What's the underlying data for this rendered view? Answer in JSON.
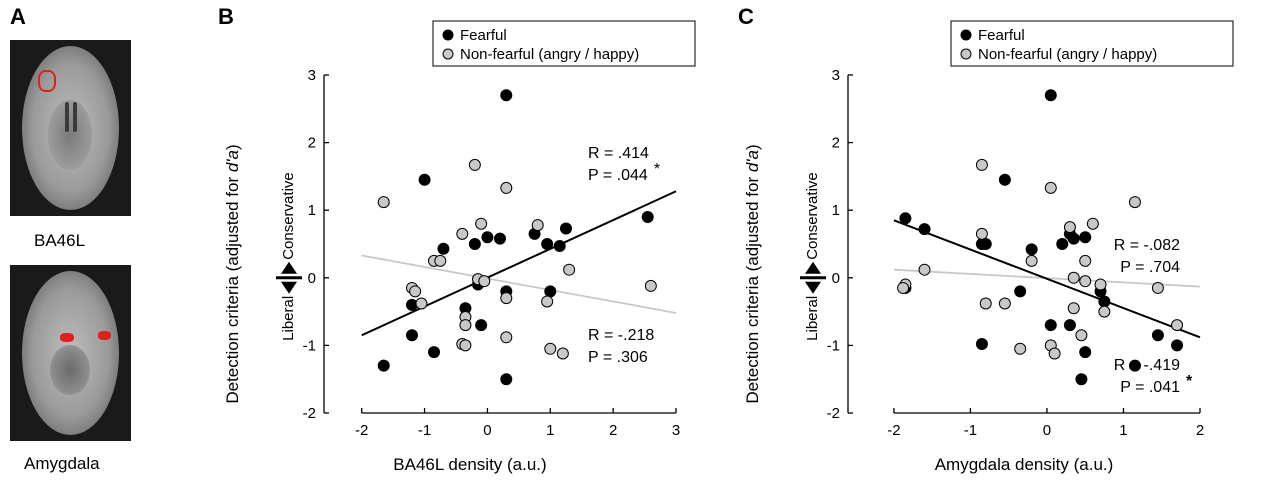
{
  "panels": {
    "a": {
      "letter": "A",
      "images": [
        {
          "label": "BA46L"
        },
        {
          "label": "Amygdala"
        }
      ]
    },
    "b": {
      "letter": "B"
    },
    "c": {
      "letter": "C"
    }
  },
  "colors": {
    "fearful": "#000000",
    "non_fearful": "#c8c8c8",
    "nonfearful_line": "#c8c8c8",
    "roi": "#e0201c"
  },
  "chart_data": [
    {
      "type": "scatter",
      "panel": "B",
      "xlabel": "BA46L density (a.u.)",
      "ylabel_main": "Detection criteria (adjusted for ",
      "ylabel_italic": "d'a",
      "ylabel_end": ")",
      "side_labels": {
        "up": "Conservative",
        "down": "Liberal"
      },
      "xlim": [
        -2.6,
        3
      ],
      "ylim": [
        -2,
        3
      ],
      "xticks": [
        "-2",
        "-1",
        "0",
        "1",
        "2",
        "3"
      ],
      "yticks": [
        "-2",
        "-1",
        "0",
        "1",
        "2",
        "3"
      ],
      "xtick_values": [
        -2,
        -1,
        0,
        1,
        2,
        3
      ],
      "ytick_values": [
        -2,
        -1,
        0,
        1,
        2,
        3
      ],
      "legend": {
        "position": "top-center",
        "entries": [
          "Fearful",
          "Non-fearful (angry / happy)"
        ]
      },
      "series": [
        {
          "name": "Fearful",
          "color": "#000000",
          "points": [
            [
              0.3,
              2.7
            ],
            [
              -1.0,
              1.45
            ],
            [
              -0.7,
              0.43
            ],
            [
              -0.2,
              0.5
            ],
            [
              0.0,
              0.6
            ],
            [
              0.2,
              0.58
            ],
            [
              0.75,
              0.65
            ],
            [
              0.95,
              0.5
            ],
            [
              1.15,
              0.47
            ],
            [
              1.25,
              0.73
            ],
            [
              2.55,
              0.9
            ],
            [
              -1.2,
              -0.4
            ],
            [
              -0.35,
              -0.45
            ],
            [
              -0.15,
              -0.1
            ],
            [
              0.3,
              -0.2
            ],
            [
              -1.2,
              -0.85
            ],
            [
              -0.85,
              -1.1
            ],
            [
              -0.1,
              -0.7
            ],
            [
              -1.65,
              -1.3
            ],
            [
              0.3,
              -1.5
            ],
            [
              1.0,
              -0.2
            ]
          ]
        },
        {
          "name": "Non-fearful (angry / happy)",
          "color": "#c8c8c8",
          "points": [
            [
              -1.65,
              1.12
            ],
            [
              -0.2,
              1.67
            ],
            [
              0.3,
              1.33
            ],
            [
              -0.4,
              0.65
            ],
            [
              -0.1,
              0.8
            ],
            [
              0.8,
              0.78
            ],
            [
              -0.85,
              0.25
            ],
            [
              -0.75,
              0.25
            ],
            [
              -1.2,
              -0.15
            ],
            [
              -1.15,
              -0.2
            ],
            [
              -0.15,
              -0.02
            ],
            [
              -0.05,
              -0.05
            ],
            [
              1.3,
              0.12
            ],
            [
              -1.05,
              -0.38
            ],
            [
              -0.35,
              -0.58
            ],
            [
              -0.35,
              -0.7
            ],
            [
              0.3,
              -0.3
            ],
            [
              0.95,
              -0.35
            ],
            [
              2.6,
              -0.12
            ],
            [
              0.3,
              -0.88
            ],
            [
              -0.4,
              -0.98
            ],
            [
              -0.35,
              -1.0
            ],
            [
              1.0,
              -1.05
            ],
            [
              1.2,
              -1.12
            ]
          ]
        }
      ],
      "fits": [
        {
          "series": "Fearful",
          "from": [
            -2,
            -0.85
          ],
          "to": [
            3,
            1.28
          ],
          "r_text": "R = .414",
          "p_text": "P = .044",
          "star": "*"
        },
        {
          "series": "Non-fearful (angry / happy)",
          "from": [
            -2,
            0.33
          ],
          "to": [
            3,
            -0.52
          ],
          "r_text": "R = -.218",
          "p_text": "P = .306",
          "star": ""
        }
      ]
    },
    {
      "type": "scatter",
      "panel": "C",
      "xlabel": "Amygdala density (a.u.)",
      "ylabel_main": "Detection criteria (adjusted for ",
      "ylabel_italic": "d'a",
      "ylabel_end": ")",
      "side_labels": {
        "up": "Conservative",
        "down": "Liberal"
      },
      "xlim": [
        -2.6,
        2
      ],
      "ylim": [
        -2,
        3
      ],
      "xticks": [
        "-2",
        "-1",
        "0",
        "1",
        "2"
      ],
      "yticks": [
        "-2",
        "-1",
        "0",
        "1",
        "2",
        "3"
      ],
      "xtick_values": [
        -2,
        -1,
        0,
        1,
        2
      ],
      "ytick_values": [
        -2,
        -1,
        0,
        1,
        2,
        3
      ],
      "legend": {
        "position": "top-center",
        "entries": [
          "Fearful",
          "Non-fearful (angry / happy)"
        ]
      },
      "series": [
        {
          "name": "Fearful",
          "color": "#000000",
          "points": [
            [
              0.05,
              2.7
            ],
            [
              -0.55,
              1.45
            ],
            [
              -1.85,
              0.88
            ],
            [
              -1.6,
              0.72
            ],
            [
              -0.85,
              0.5
            ],
            [
              -0.8,
              0.5
            ],
            [
              -0.2,
              0.42
            ],
            [
              0.2,
              0.5
            ],
            [
              0.3,
              0.65
            ],
            [
              0.35,
              0.58
            ],
            [
              0.5,
              0.6
            ],
            [
              0.7,
              -0.2
            ],
            [
              0.75,
              -0.35
            ],
            [
              -0.35,
              -0.2
            ],
            [
              0.05,
              -0.7
            ],
            [
              0.3,
              -0.7
            ],
            [
              -0.85,
              -0.98
            ],
            [
              0.5,
              -1.1
            ],
            [
              0.45,
              -1.5
            ],
            [
              1.15,
              -1.3
            ],
            [
              1.45,
              -0.85
            ],
            [
              1.7,
              -1.0
            ],
            [
              -1.85,
              -0.15
            ]
          ]
        },
        {
          "name": "Non-fearful (angry / happy)",
          "color": "#c8c8c8",
          "points": [
            [
              -0.85,
              1.67
            ],
            [
              0.05,
              1.33
            ],
            [
              1.15,
              1.12
            ],
            [
              0.3,
              0.75
            ],
            [
              0.6,
              0.8
            ],
            [
              -0.85,
              0.65
            ],
            [
              -1.6,
              0.12
            ],
            [
              -0.2,
              0.25
            ],
            [
              0.5,
              0.25
            ],
            [
              -1.85,
              -0.1
            ],
            [
              -1.88,
              -0.15
            ],
            [
              0.35,
              0.0
            ],
            [
              0.5,
              -0.05
            ],
            [
              0.7,
              -0.1
            ],
            [
              -0.55,
              -0.38
            ],
            [
              -0.8,
              -0.38
            ],
            [
              0.75,
              -0.5
            ],
            [
              1.45,
              -0.15
            ],
            [
              0.35,
              -0.45
            ],
            [
              0.45,
              -0.85
            ],
            [
              -0.35,
              -1.05
            ],
            [
              0.05,
              -1.0
            ],
            [
              0.1,
              -1.12
            ],
            [
              1.7,
              -0.7
            ]
          ]
        }
      ],
      "fits": [
        {
          "series": "Fearful",
          "from": [
            -2,
            0.85
          ],
          "to": [
            2,
            -0.88
          ],
          "r_text": "R = -.419",
          "p_text": "P = .041",
          "star": "*"
        },
        {
          "series": "Non-fearful (angry / happy)",
          "from": [
            -2,
            0.12
          ],
          "to": [
            2,
            -0.13
          ],
          "r_text": "R = -.082",
          "p_text": "P = .704",
          "star": ""
        }
      ]
    }
  ]
}
